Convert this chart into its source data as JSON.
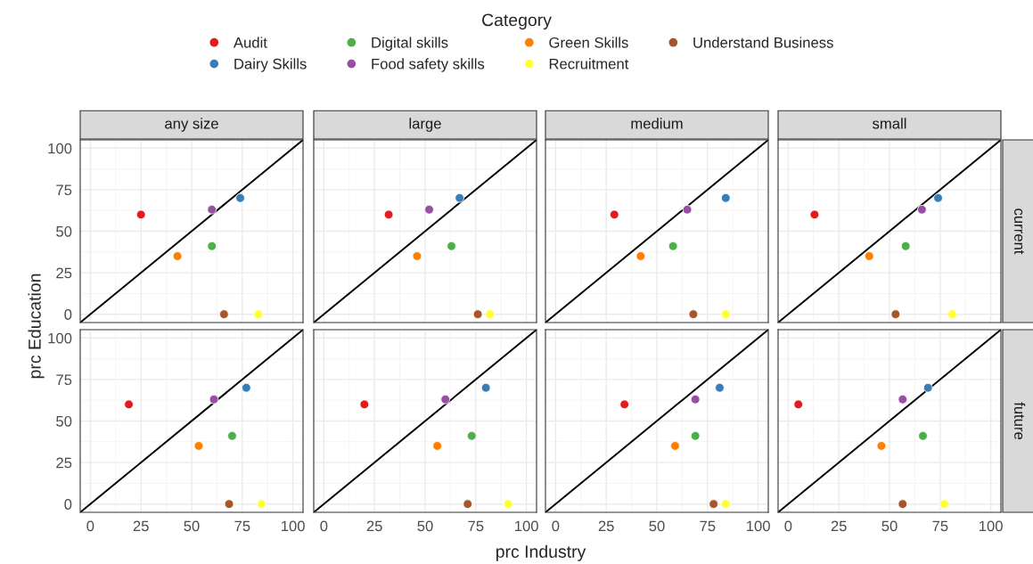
{
  "chart_data": [
    {
      "type": "scatter",
      "title": "any size",
      "ylabel": "prc Education",
      "legend_title": "Category",
      "legend": "top",
      "tick_labels": "y",
      "marker": "circle",
      "grid": true,
      "xlim": [
        -5,
        105
      ],
      "ylim": [
        -5,
        105
      ],
      "xticks": [
        0,
        25,
        50,
        75,
        100
      ],
      "yticks": [
        0,
        25,
        50,
        75,
        100
      ],
      "series": [
        {
          "type": "line",
          "marker": "none",
          "color": "#000000",
          "x": [
            -5,
            105
          ],
          "values": [
            -5,
            105
          ]
        },
        {
          "name": "Audit",
          "color": "#e41a1c",
          "x": [
            25
          ],
          "values": [
            60
          ]
        },
        {
          "name": "Dairy Skills",
          "color": "#377eb8",
          "x": [
            74
          ],
          "values": [
            70
          ]
        },
        {
          "name": "Digital skills",
          "color": "#4daf4a",
          "x": [
            60
          ],
          "values": [
            41
          ]
        },
        {
          "name": "Food safety skills",
          "color": "#984ea3",
          "x": [
            60
          ],
          "values": [
            63
          ]
        },
        {
          "name": "Green Skills",
          "color": "#ff7f00",
          "x": [
            43
          ],
          "values": [
            35
          ]
        },
        {
          "name": "Recruitment",
          "color": "#ffff33",
          "x": [
            83
          ],
          "values": [
            0
          ]
        },
        {
          "name": "Understand Business",
          "color": "#a65628",
          "x": [
            66
          ],
          "values": [
            0
          ]
        }
      ]
    },
    {
      "type": "scatter",
      "title": "large",
      "tick_labels": false,
      "marker": "circle",
      "grid": true,
      "xlim": [
        -5,
        105
      ],
      "ylim": [
        -5,
        105
      ],
      "xticks": [
        0,
        25,
        50,
        75,
        100
      ],
      "yticks": [
        0,
        25,
        50,
        75,
        100
      ],
      "series": [
        {
          "type": "line",
          "marker": "none",
          "color": "#000000",
          "x": [
            -5,
            105
          ],
          "values": [
            -5,
            105
          ]
        },
        {
          "color": "#e41a1c",
          "x": [
            32
          ],
          "values": [
            60
          ]
        },
        {
          "color": "#377eb8",
          "x": [
            67
          ],
          "values": [
            70
          ]
        },
        {
          "color": "#4daf4a",
          "x": [
            63
          ],
          "values": [
            41
          ]
        },
        {
          "color": "#984ea3",
          "x": [
            52
          ],
          "values": [
            63
          ]
        },
        {
          "color": "#ff7f00",
          "x": [
            46
          ],
          "values": [
            35
          ]
        },
        {
          "color": "#ffff33",
          "x": [
            82
          ],
          "values": [
            0
          ]
        },
        {
          "color": "#a65628",
          "x": [
            76
          ],
          "values": [
            0
          ]
        }
      ]
    },
    {
      "type": "scatter",
      "title": "medium",
      "tick_labels": false,
      "marker": "circle",
      "grid": true,
      "xlim": [
        -5,
        105
      ],
      "ylim": [
        -5,
        105
      ],
      "xticks": [
        0,
        25,
        50,
        75,
        100
      ],
      "yticks": [
        0,
        25,
        50,
        75,
        100
      ],
      "series": [
        {
          "type": "line",
          "marker": "none",
          "color": "#000000",
          "x": [
            -5,
            105
          ],
          "values": [
            -5,
            105
          ]
        },
        {
          "color": "#e41a1c",
          "x": [
            29
          ],
          "values": [
            60
          ]
        },
        {
          "color": "#377eb8",
          "x": [
            84
          ],
          "values": [
            70
          ]
        },
        {
          "color": "#4daf4a",
          "x": [
            58
          ],
          "values": [
            41
          ]
        },
        {
          "color": "#984ea3",
          "x": [
            65
          ],
          "values": [
            63
          ]
        },
        {
          "color": "#ff7f00",
          "x": [
            42
          ],
          "values": [
            35
          ]
        },
        {
          "color": "#ffff33",
          "x": [
            84
          ],
          "values": [
            0
          ]
        },
        {
          "color": "#a65628",
          "x": [
            68
          ],
          "values": [
            0
          ]
        }
      ]
    },
    {
      "type": "scatter",
      "title": "small",
      "annotations": [
        "current"
      ],
      "tick_labels": false,
      "marker": "circle",
      "grid": true,
      "xlim": [
        -5,
        105
      ],
      "ylim": [
        -5,
        105
      ],
      "xticks": [
        0,
        25,
        50,
        75,
        100
      ],
      "yticks": [
        0,
        25,
        50,
        75,
        100
      ],
      "series": [
        {
          "type": "line",
          "marker": "none",
          "color": "#000000",
          "x": [
            -5,
            105
          ],
          "values": [
            -5,
            105
          ]
        },
        {
          "color": "#e41a1c",
          "x": [
            13
          ],
          "values": [
            60
          ]
        },
        {
          "color": "#377eb8",
          "x": [
            74
          ],
          "values": [
            70
          ]
        },
        {
          "color": "#4daf4a",
          "x": [
            58
          ],
          "values": [
            41
          ]
        },
        {
          "color": "#984ea3",
          "x": [
            66
          ],
          "values": [
            63
          ]
        },
        {
          "color": "#ff7f00",
          "x": [
            40
          ],
          "values": [
            35
          ]
        },
        {
          "color": "#ffff33",
          "x": [
            81
          ],
          "values": [
            0
          ]
        },
        {
          "color": "#a65628",
          "x": [
            53
          ],
          "values": [
            0
          ]
        }
      ]
    },
    {
      "type": "scatter",
      "marker": "circle",
      "grid": true,
      "xlim": [
        -5,
        105
      ],
      "ylim": [
        -5,
        105
      ],
      "xticks": [
        0,
        25,
        50,
        75,
        100
      ],
      "yticks": [
        0,
        25,
        50,
        75,
        100
      ],
      "series": [
        {
          "type": "line",
          "marker": "none",
          "color": "#000000",
          "x": [
            -5,
            105
          ],
          "values": [
            -5,
            105
          ]
        },
        {
          "color": "#e41a1c",
          "x": [
            19
          ],
          "values": [
            60
          ]
        },
        {
          "color": "#377eb8",
          "x": [
            77
          ],
          "values": [
            70
          ]
        },
        {
          "color": "#4daf4a",
          "x": [
            70
          ],
          "values": [
            41
          ]
        },
        {
          "color": "#984ea3",
          "x": [
            61
          ],
          "values": [
            63
          ]
        },
        {
          "color": "#ff7f00",
          "x": [
            53.5
          ],
          "values": [
            35
          ]
        },
        {
          "color": "#ffff33",
          "x": [
            84.5
          ],
          "values": [
            0
          ]
        },
        {
          "color": "#a65628",
          "x": [
            68.5
          ],
          "values": [
            0
          ]
        }
      ]
    },
    {
      "type": "scatter",
      "xlabel": "prc Industry",
      "tick_labels": "x",
      "marker": "circle",
      "grid": true,
      "xlim": [
        -5,
        105
      ],
      "ylim": [
        -5,
        105
      ],
      "xticks": [
        0,
        25,
        50,
        75,
        100
      ],
      "yticks": [
        0,
        25,
        50,
        75,
        100
      ],
      "series": [
        {
          "type": "line",
          "marker": "none",
          "color": "#000000",
          "x": [
            -5,
            105
          ],
          "values": [
            -5,
            105
          ]
        },
        {
          "color": "#e41a1c",
          "x": [
            20
          ],
          "values": [
            60
          ]
        },
        {
          "color": "#377eb8",
          "x": [
            80
          ],
          "values": [
            70
          ]
        },
        {
          "color": "#4daf4a",
          "x": [
            73
          ],
          "values": [
            41
          ]
        },
        {
          "color": "#984ea3",
          "x": [
            60
          ],
          "values": [
            63
          ]
        },
        {
          "color": "#ff7f00",
          "x": [
            56
          ],
          "values": [
            35
          ]
        },
        {
          "color": "#ffff33",
          "x": [
            91
          ],
          "values": [
            0
          ]
        },
        {
          "color": "#a65628",
          "x": [
            71
          ],
          "values": [
            0
          ]
        }
      ]
    },
    {
      "type": "scatter",
      "tick_labels": "x",
      "marker": "circle",
      "grid": true,
      "xlim": [
        -5,
        105
      ],
      "ylim": [
        -5,
        105
      ],
      "xticks": [
        0,
        25,
        50,
        75,
        100
      ],
      "yticks": [
        0,
        25,
        50,
        75,
        100
      ],
      "series": [
        {
          "type": "line",
          "marker": "none",
          "color": "#000000",
          "x": [
            -5,
            105
          ],
          "values": [
            -5,
            105
          ]
        },
        {
          "color": "#e41a1c",
          "x": [
            34
          ],
          "values": [
            60
          ]
        },
        {
          "color": "#377eb8",
          "x": [
            81
          ],
          "values": [
            70
          ]
        },
        {
          "color": "#4daf4a",
          "x": [
            69
          ],
          "values": [
            41
          ]
        },
        {
          "color": "#984ea3",
          "x": [
            69
          ],
          "values": [
            63
          ]
        },
        {
          "color": "#ff7f00",
          "x": [
            59
          ],
          "values": [
            35
          ]
        },
        {
          "color": "#ffff33",
          "x": [
            84
          ],
          "values": [
            0
          ]
        },
        {
          "color": "#a65628",
          "x": [
            78
          ],
          "values": [
            0
          ]
        }
      ]
    },
    {
      "type": "scatter",
      "annotations": [
        "future"
      ],
      "tick_labels": "x",
      "marker": "circle",
      "grid": true,
      "xlim": [
        -5,
        105
      ],
      "ylim": [
        -5,
        105
      ],
      "xticks": [
        0,
        25,
        50,
        75,
        100
      ],
      "yticks": [
        0,
        25,
        50,
        75,
        100
      ],
      "series": [
        {
          "type": "line",
          "marker": "none",
          "color": "#000000",
          "x": [
            -5,
            105
          ],
          "values": [
            -5,
            105
          ]
        },
        {
          "color": "#e41a1c",
          "x": [
            5
          ],
          "values": [
            60
          ]
        },
        {
          "color": "#377eb8",
          "x": [
            69
          ],
          "values": [
            70
          ]
        },
        {
          "color": "#4daf4a",
          "x": [
            66.5
          ],
          "values": [
            41
          ]
        },
        {
          "color": "#984ea3",
          "x": [
            56.5
          ],
          "values": [
            63
          ]
        },
        {
          "color": "#ff7f00",
          "x": [
            46
          ],
          "values": [
            35
          ]
        },
        {
          "color": "#ffff33",
          "x": [
            77
          ],
          "values": [
            0
          ]
        },
        {
          "color": "#a65628",
          "x": [
            56.5
          ],
          "values": [
            0
          ]
        }
      ]
    }
  ]
}
